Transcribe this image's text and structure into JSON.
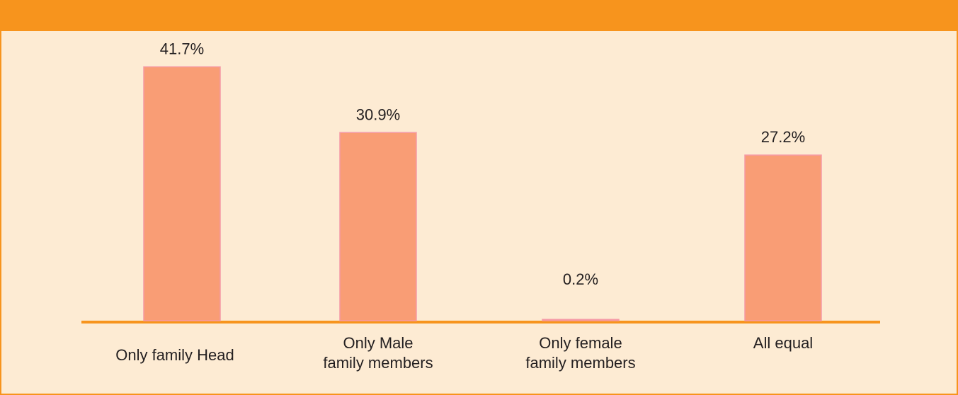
{
  "chart_data": {
    "type": "bar",
    "categories": [
      "Only family Head",
      "Only Male\nfamily members",
      "Only female\nfamily members",
      "All equal"
    ],
    "values": [
      41.7,
      30.9,
      0.2,
      27.2
    ],
    "value_labels": [
      "41.7%",
      "30.9%",
      "0.2%",
      "27.2%"
    ],
    "color": "#f99d75"
  }
}
